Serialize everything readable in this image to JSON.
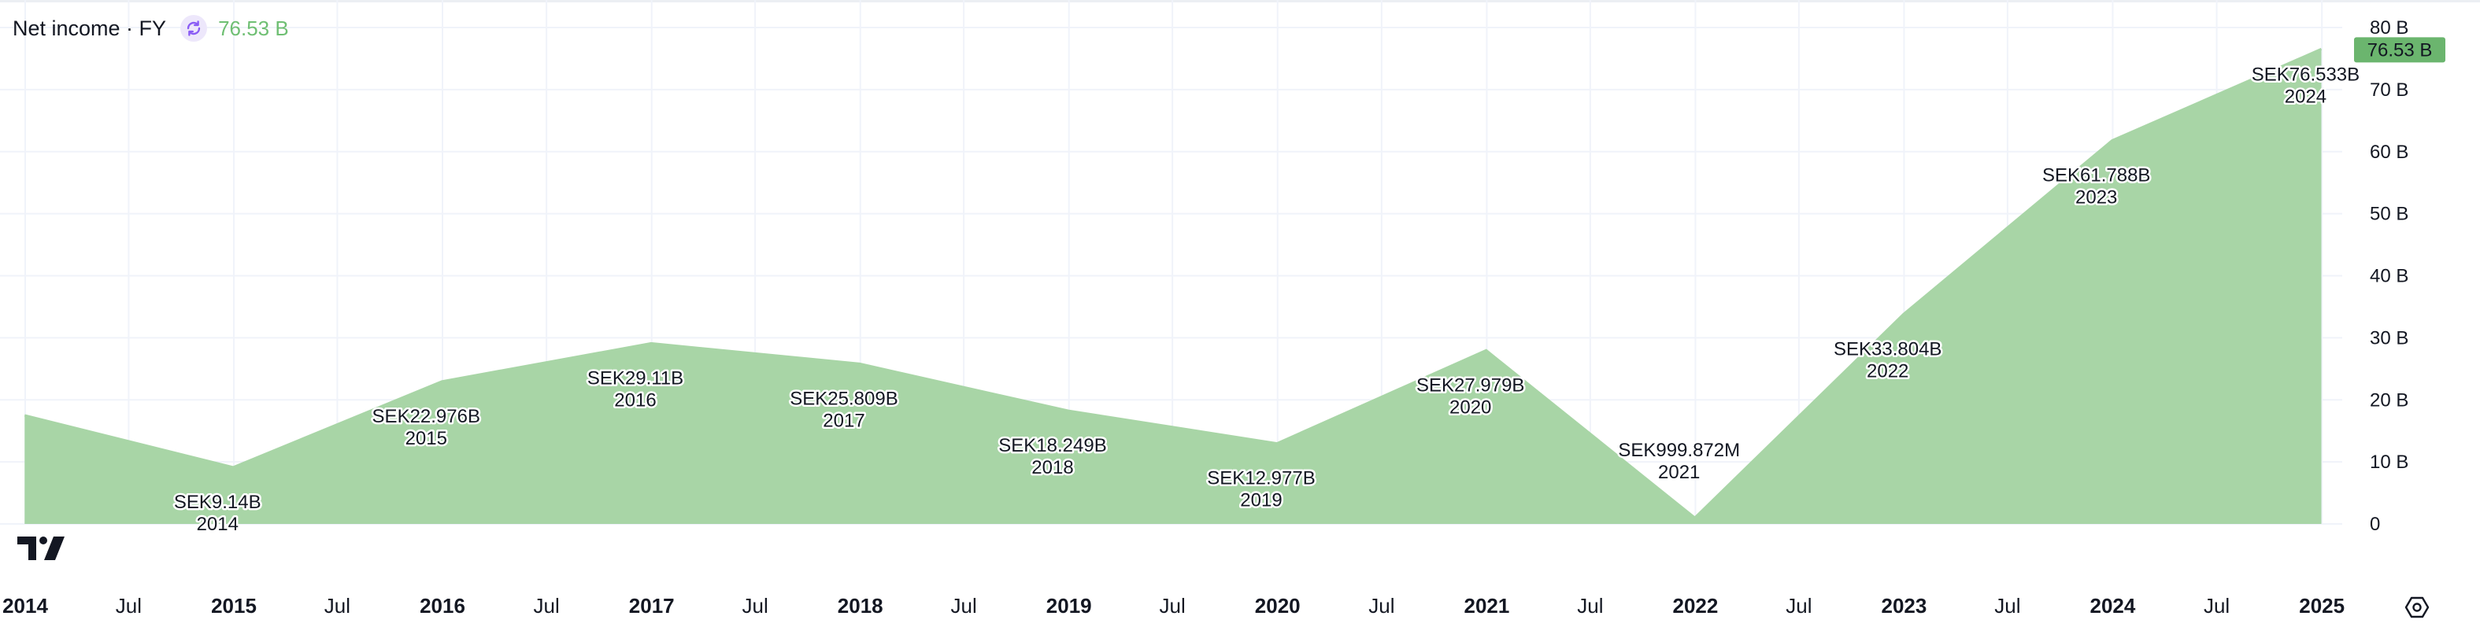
{
  "legend": {
    "title": "Net income · FY",
    "value": "76.53 B",
    "sync_icon": "sync-icon",
    "value_color": "#6fbf73"
  },
  "colors": {
    "area_fill": "#a8d5a6",
    "area_stroke": "#a8d5a6",
    "grid": "#f0f3fa",
    "text": "#131722",
    "last_value_badge": "#6bb56e",
    "badge_text": "#131722"
  },
  "icons": {
    "logo": "tradingview-logo-icon",
    "settings": "settings-icon"
  },
  "chart_data": {
    "type": "area",
    "title": "",
    "xlabel": "",
    "ylabel": "",
    "grid": true,
    "y_axis_position": "right",
    "series": [
      {
        "name": "Net income · FY",
        "points": [
          {
            "x": "2013-12-31",
            "y": 17.5,
            "label": "",
            "year": ""
          },
          {
            "x": "2014-12-31",
            "y": 9.14,
            "label": "SEK9.14B",
            "year": "2014"
          },
          {
            "x": "2015-12-31",
            "y": 22.976,
            "label": "SEK22.976B",
            "year": "2015"
          },
          {
            "x": "2016-12-31",
            "y": 29.11,
            "label": "SEK29.11B",
            "year": "2016"
          },
          {
            "x": "2017-12-31",
            "y": 25.809,
            "label": "SEK25.809B",
            "year": "2017"
          },
          {
            "x": "2018-12-31",
            "y": 18.249,
            "label": "SEK18.249B",
            "year": "2018"
          },
          {
            "x": "2019-12-31",
            "y": 12.977,
            "label": "SEK12.977B",
            "year": "2019"
          },
          {
            "x": "2020-12-31",
            "y": 27.979,
            "label": "SEK27.979B",
            "year": "2020"
          },
          {
            "x": "2021-12-31",
            "y": 0.999872,
            "label": "SEK999.872M",
            "year": "2021"
          },
          {
            "x": "2022-12-31",
            "y": 33.804,
            "label": "SEK33.804B",
            "year": "2022"
          },
          {
            "x": "2023-12-31",
            "y": 61.788,
            "label": "SEK61.788B",
            "year": "2023"
          },
          {
            "x": "2024-12-31",
            "y": 76.533,
            "label": "SEK76.533B",
            "year": "2024"
          }
        ]
      }
    ],
    "x_ticks": [
      {
        "label": "2014",
        "date": "2014-01-01",
        "bold": true
      },
      {
        "label": "Jul",
        "date": "2014-07-01",
        "bold": false
      },
      {
        "label": "2015",
        "date": "2015-01-01",
        "bold": true
      },
      {
        "label": "Jul",
        "date": "2015-07-01",
        "bold": false
      },
      {
        "label": "2016",
        "date": "2016-01-01",
        "bold": true
      },
      {
        "label": "Jul",
        "date": "2016-07-01",
        "bold": false
      },
      {
        "label": "2017",
        "date": "2017-01-01",
        "bold": true
      },
      {
        "label": "Jul",
        "date": "2017-07-01",
        "bold": false
      },
      {
        "label": "2018",
        "date": "2018-01-01",
        "bold": true
      },
      {
        "label": "Jul",
        "date": "2018-07-01",
        "bold": false
      },
      {
        "label": "2019",
        "date": "2019-01-01",
        "bold": true
      },
      {
        "label": "Jul",
        "date": "2019-07-01",
        "bold": false
      },
      {
        "label": "2020",
        "date": "2020-01-01",
        "bold": true
      },
      {
        "label": "Jul",
        "date": "2020-07-01",
        "bold": false
      },
      {
        "label": "2021",
        "date": "2021-01-01",
        "bold": true
      },
      {
        "label": "Jul",
        "date": "2021-07-01",
        "bold": false
      },
      {
        "label": "2022",
        "date": "2022-01-01",
        "bold": true
      },
      {
        "label": "Jul",
        "date": "2022-07-01",
        "bold": false
      },
      {
        "label": "2023",
        "date": "2023-01-01",
        "bold": true
      },
      {
        "label": "Jul",
        "date": "2023-07-01",
        "bold": false
      },
      {
        "label": "2024",
        "date": "2024-01-01",
        "bold": true
      },
      {
        "label": "Jul",
        "date": "2024-07-01",
        "bold": false
      },
      {
        "label": "2025",
        "date": "2025-01-01",
        "bold": true
      }
    ],
    "y_ticks": [
      {
        "value": 0,
        "label": "0"
      },
      {
        "value": 10,
        "label": "10 B"
      },
      {
        "value": 20,
        "label": "20 B"
      },
      {
        "value": 30,
        "label": "30 B"
      },
      {
        "value": 40,
        "label": "40 B"
      },
      {
        "value": 50,
        "label": "50 B"
      },
      {
        "value": 60,
        "label": "60 B"
      },
      {
        "value": 70,
        "label": "70 B"
      },
      {
        "value": 80,
        "label": "80 B"
      }
    ],
    "ylim": [
      0,
      80
    ],
    "xlim": [
      "2014-01-01",
      "2025-01-01"
    ],
    "last_value_label": "76.53 B",
    "last_value": 76.533
  }
}
